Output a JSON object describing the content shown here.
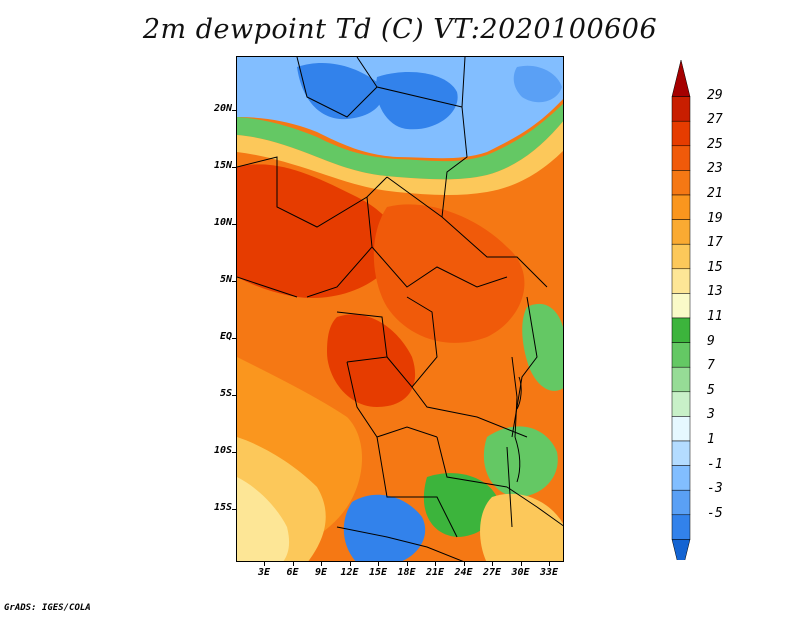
{
  "title": "2m dewpoint Td (C) VT:2020100606",
  "footer": "GrADS: IGES/COLA",
  "lat_labels": [
    "20N",
    "15N",
    "10N",
    "5N",
    "EQ",
    "5S",
    "10S",
    "15S"
  ],
  "lon_labels": [
    "3E",
    "6E",
    "9E",
    "12E",
    "15E",
    "18E",
    "21E",
    "24E",
    "27E",
    "30E",
    "33E"
  ],
  "colorbar": {
    "labels": [
      "29",
      "27",
      "25",
      "23",
      "21",
      "19",
      "17",
      "15",
      "13",
      "11",
      "9",
      "7",
      "5",
      "3",
      "1",
      "-1",
      "-3",
      "-5"
    ],
    "colors": [
      "#a50000",
      "#c81e00",
      "#e63c00",
      "#f05a0a",
      "#f57814",
      "#fa961e",
      "#faaa32",
      "#fcc85a",
      "#fde696",
      "#fafac8",
      "#3cb43c",
      "#64c864",
      "#96dc96",
      "#c8f0c8",
      "#e6f8ff",
      "#b4dcff",
      "#82beff",
      "#5aa0f5",
      "#3282eb",
      "#1464d2"
    ]
  }
}
